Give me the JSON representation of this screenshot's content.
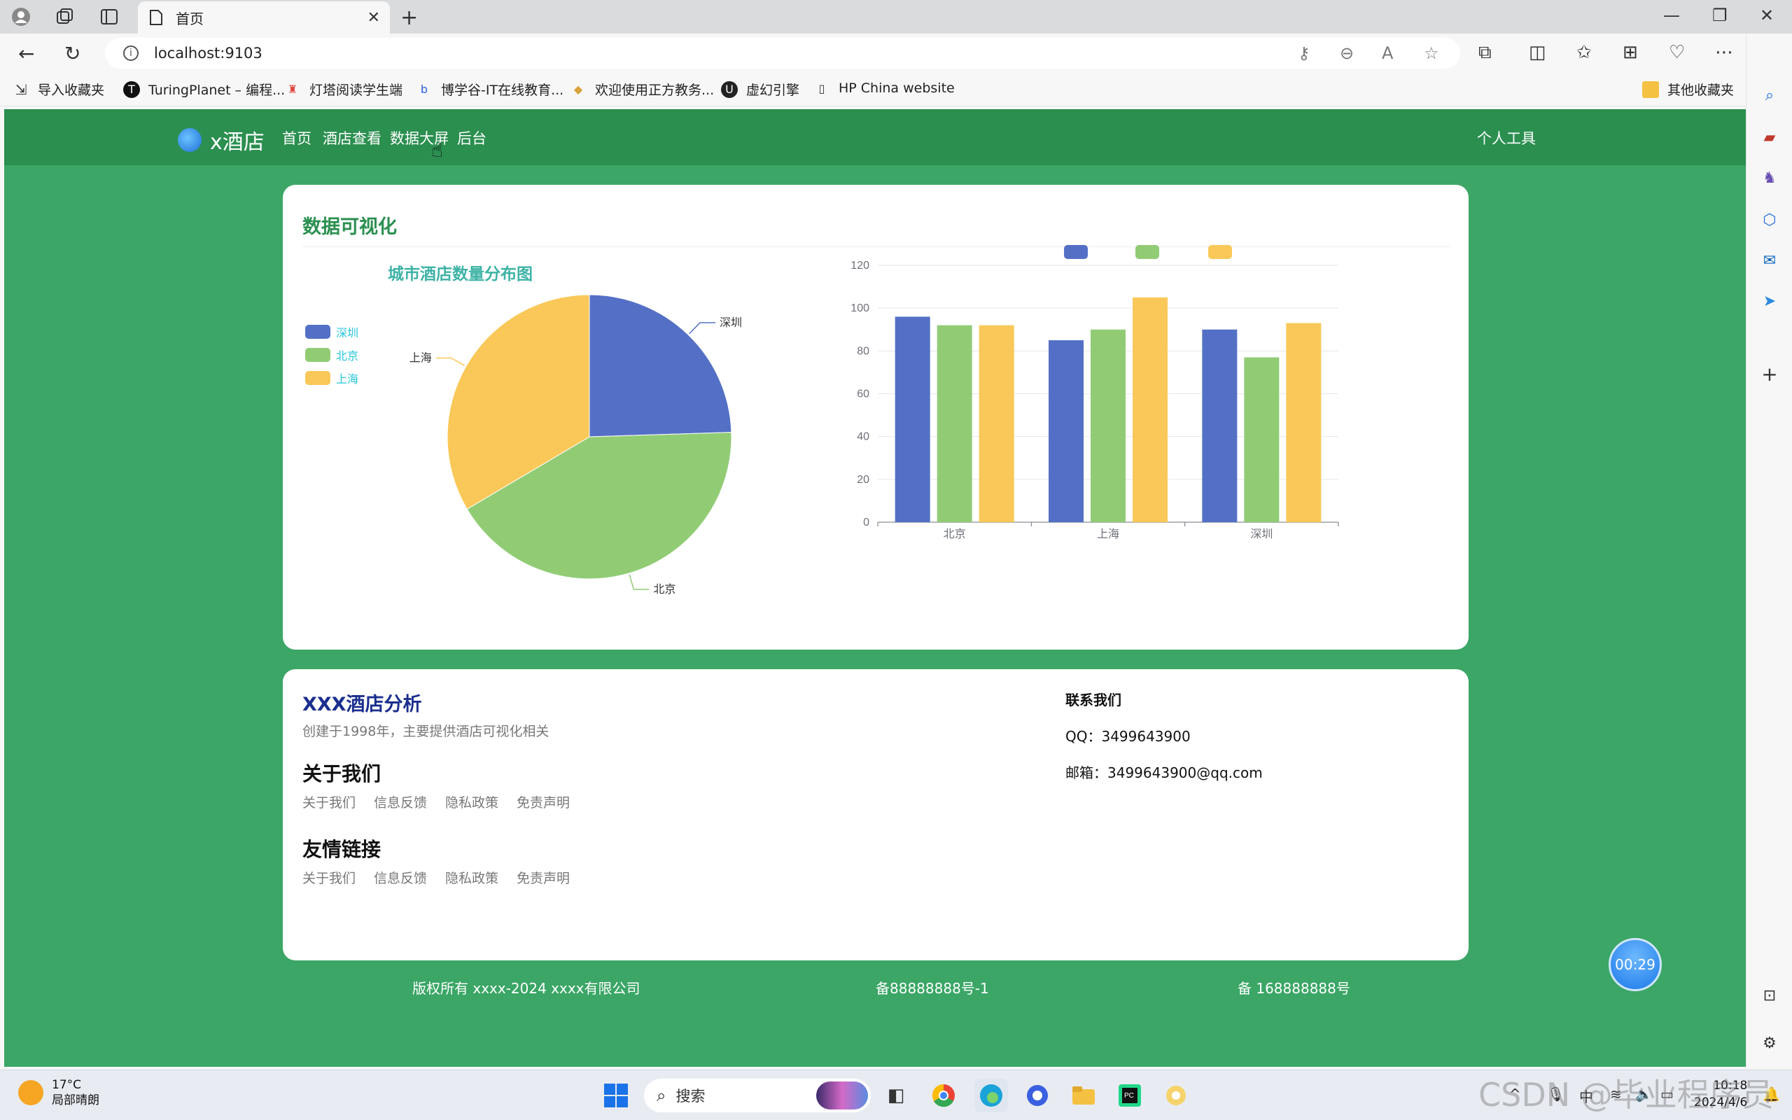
{
  "browser": {
    "tab_title": "首页",
    "url": "localhost:9103",
    "bookmarks": [
      "导入收藏夹",
      "TuringPlanet – 编程...",
      "灯塔阅读学生端",
      "博学谷-IT在线教育...",
      "欢迎使用正方教务...",
      "虚幻引擎",
      "HP China website"
    ],
    "other_bookmarks": "其他收藏夹"
  },
  "site": {
    "logo_text": "x酒店",
    "menu": [
      "首页",
      "酒店查看",
      "数据大屏",
      "后台"
    ],
    "personal_tools": "个人工具"
  },
  "viz": {
    "section_title": "数据可视化"
  },
  "chart_data": [
    {
      "type": "pie",
      "title": "城市酒店数量分布图",
      "legend": [
        "深圳",
        "北京",
        "上海"
      ],
      "legend_position": "left",
      "slices": [
        {
          "name": "深圳",
          "value": 24.5,
          "color": "#5470c6"
        },
        {
          "name": "北京",
          "value": 42,
          "color": "#91cc75"
        },
        {
          "name": "上海",
          "value": 33.5,
          "color": "#fac858"
        }
      ]
    },
    {
      "type": "bar",
      "categories": [
        "北京",
        "上海",
        "深圳"
      ],
      "series": [
        {
          "values": [
            96,
            85,
            90
          ],
          "color": "#5470c6"
        },
        {
          "values": [
            92,
            90,
            77
          ],
          "color": "#91cc75"
        },
        {
          "values": [
            92,
            105,
            93
          ],
          "color": "#fac858"
        }
      ],
      "legend_position": "top",
      "ylim": [
        0,
        120
      ],
      "yticks": [
        0,
        20,
        40,
        60,
        80,
        100,
        120
      ],
      "grid": true
    }
  ],
  "info": {
    "brand": "XXX酒店分析",
    "since": "创建于1998年，主要提供酒店可视化相关",
    "about_title": "关于我们",
    "about_links": [
      "关于我们",
      "信息反馈",
      "隐私政策",
      "免责声明"
    ],
    "friends_title": "友情链接",
    "friend_links": [
      "关于我们",
      "信息反馈",
      "隐私政策",
      "免责声明"
    ],
    "contact_title": "联系我们",
    "qq": "QQ：3499643900",
    "email": "邮箱：3499643900@qq.com"
  },
  "footer": {
    "copyright": "版权所有 xxxx-2024 xxxx有限公司",
    "icp1": "备88888888号-1",
    "icp2": "备 168888888号"
  },
  "timer": "00:29",
  "taskbar": {
    "temp": "17°C",
    "weather": "局部晴朗",
    "search": "搜索",
    "time": "10:18",
    "date": "2024/4/6"
  },
  "watermark": "CSDN @毕业程序员"
}
